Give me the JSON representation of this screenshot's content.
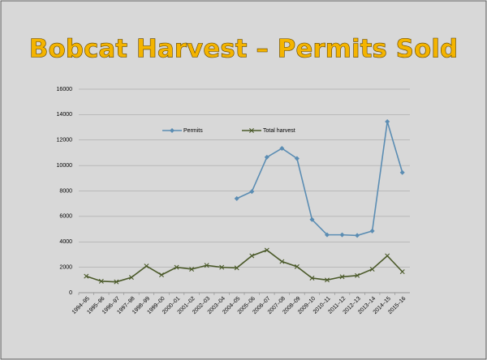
{
  "chart_data": {
    "type": "line",
    "title": "Bobcat Harvest – Permits Sold",
    "categories": [
      "1994–95",
      "1995–96",
      "1996–97",
      "1997–98",
      "1998–99",
      "1999–00",
      "2000–01",
      "2001–02",
      "2002–03",
      "2003–04",
      "2004–05",
      "2005–06",
      "2006–07",
      "2007–08",
      "2008–09",
      "2009–10",
      "2010–11",
      "2011–12",
      "2012–13",
      "2013–14",
      "2014–15",
      "2015–16"
    ],
    "series": [
      {
        "name": "Permits",
        "color": "#5b8db3",
        "marker": "diamond",
        "values": [
          null,
          null,
          null,
          null,
          null,
          null,
          null,
          null,
          null,
          null,
          7400,
          7950,
          10650,
          11350,
          10550,
          5750,
          4550,
          4550,
          4500,
          4850,
          13450,
          9450
        ]
      },
      {
        "name": "Total harvest",
        "color": "#4b5a2a",
        "marker": "x",
        "values": [
          1300,
          900,
          850,
          1200,
          2100,
          1400,
          2000,
          1850,
          2150,
          2000,
          1950,
          2900,
          3350,
          2450,
          2050,
          1150,
          1000,
          1250,
          1350,
          1850,
          2900,
          1650
        ]
      }
    ],
    "ylim": [
      0,
      16000
    ],
    "yticks": [
      0,
      2000,
      4000,
      6000,
      8000,
      10000,
      12000,
      14000,
      16000
    ],
    "grid": true,
    "legend": "top"
  }
}
